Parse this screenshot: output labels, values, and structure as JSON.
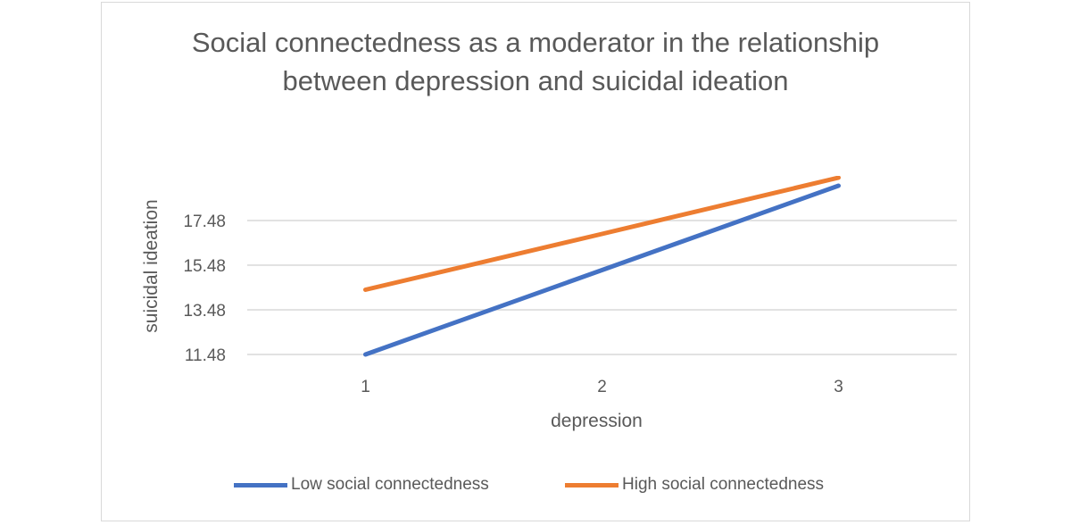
{
  "chart_data": {
    "type": "line",
    "title": "Social connectedness as a moderator in the relationship between depression and suicidal ideation",
    "xlabel": "depression",
    "ylabel": "suicidal ideation",
    "categories": [
      "1",
      "2",
      "3"
    ],
    "yticks": [
      "11.48",
      "13.48",
      "15.48",
      "17.48"
    ],
    "ylim": [
      11.48,
      19.48
    ],
    "grid": true,
    "legend_position": "bottom",
    "series": [
      {
        "name": "Low social connectedness",
        "color": "#4472c4",
        "values": [
          11.48,
          15.26,
          19.04
        ]
      },
      {
        "name": "High social connectedness",
        "color": "#ed7d31",
        "values": [
          14.38,
          16.88,
          19.4
        ]
      }
    ]
  }
}
